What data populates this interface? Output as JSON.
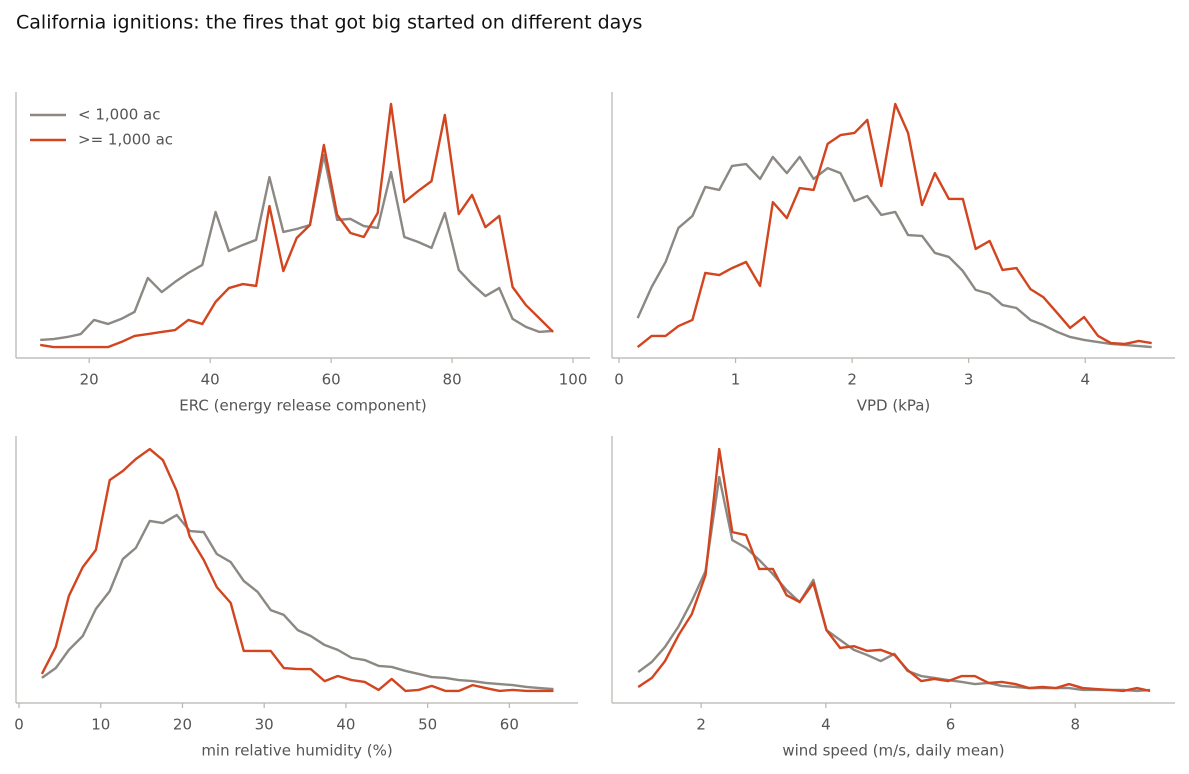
{
  "title": "California ignitions: the fires that got big started on different days",
  "chart_data": [
    {
      "type": "line",
      "xlabel": "ERC (energy release component)",
      "xlim": [
        7.9,
        102.8
      ],
      "xticks": [
        20,
        40,
        60,
        80,
        100
      ],
      "ylim": [
        0,
        100
      ],
      "legend": "upper left",
      "x": [
        11.9,
        14.1,
        16.4,
        18.6,
        20.8,
        23.1,
        25.3,
        27.5,
        29.7,
        32.0,
        34.2,
        36.4,
        38.7,
        40.9,
        43.1,
        45.4,
        47.6,
        49.8,
        52.1,
        54.3,
        56.5,
        58.8,
        61.0,
        63.2,
        65.4,
        67.7,
        69.9,
        72.1,
        74.4,
        76.6,
        78.8,
        81.1,
        83.3,
        85.5,
        87.8,
        90.0,
        92.2,
        94.4,
        96.7
      ],
      "series": [
        {
          "name": "< 1,000 ac",
          "color": "#8c8883",
          "values": [
            6.8,
            7.1,
            7.9,
            9.0,
            14.3,
            12.8,
            14.7,
            17.3,
            30.1,
            24.8,
            28.6,
            32.0,
            35.0,
            54.9,
            40.2,
            42.5,
            44.4,
            68.0,
            47.4,
            48.5,
            50.0,
            76.3,
            51.9,
            52.3,
            49.6,
            48.9,
            69.9,
            45.5,
            43.6,
            41.4,
            54.5,
            33.1,
            27.8,
            23.3,
            26.3,
            14.7,
            11.7,
            9.8,
            10.2
          ]
        },
        {
          "name": ">= 1,000 ac",
          "color": "#d2451f",
          "values": [
            4.9,
            4.1,
            4.1,
            4.1,
            4.1,
            4.1,
            6.0,
            8.3,
            9.0,
            9.8,
            10.5,
            14.3,
            12.8,
            21.1,
            26.3,
            27.8,
            27.1,
            57.1,
            32.7,
            45.1,
            50.0,
            80.1,
            53.8,
            47.0,
            45.5,
            54.5,
            95.5,
            58.6,
            62.8,
            66.5,
            91.4,
            54.1,
            61.3,
            49.2,
            53.4,
            26.7,
            19.9,
            15.0,
            9.8
          ]
        }
      ]
    },
    {
      "type": "line",
      "xlabel": "VPD (kPa)",
      "xlim": [
        -0.06,
        4.77
      ],
      "xticks": [
        0,
        1,
        2,
        3,
        4
      ],
      "ylim": [
        0,
        100
      ],
      "x": [
        0.16,
        0.28,
        0.4,
        0.51,
        0.63,
        0.74,
        0.86,
        0.97,
        1.09,
        1.21,
        1.32,
        1.44,
        1.55,
        1.67,
        1.79,
        1.9,
        2.02,
        2.13,
        2.25,
        2.37,
        2.48,
        2.6,
        2.71,
        2.83,
        2.95,
        3.06,
        3.18,
        3.29,
        3.41,
        3.53,
        3.64,
        3.76,
        3.87,
        3.99,
        4.11,
        4.22,
        4.34,
        4.46,
        4.57
      ],
      "series": [
        {
          "name": "< 1,000 ac",
          "color": "#8c8883",
          "values": [
            15.0,
            26.7,
            36.1,
            48.9,
            53.4,
            64.3,
            63.2,
            72.2,
            72.9,
            67.3,
            75.6,
            69.5,
            75.6,
            67.3,
            71.4,
            69.5,
            59.0,
            60.9,
            53.8,
            54.9,
            46.2,
            45.9,
            39.5,
            38.0,
            32.7,
            25.6,
            24.1,
            19.9,
            18.8,
            14.3,
            12.4,
            9.8,
            7.9,
            6.8,
            6.0,
            5.3,
            4.9,
            4.5,
            4.1
          ]
        },
        {
          "name": ">= 1,000 ac",
          "color": "#d2451f",
          "values": [
            4.1,
            8.3,
            8.3,
            12.0,
            14.3,
            32.0,
            31.2,
            33.8,
            36.1,
            27.1,
            58.6,
            52.6,
            63.9,
            63.2,
            80.5,
            83.8,
            84.6,
            89.5,
            64.7,
            95.5,
            84.6,
            57.5,
            69.5,
            59.8,
            59.8,
            41.0,
            44.0,
            33.1,
            33.8,
            25.9,
            22.9,
            16.9,
            11.3,
            15.4,
            8.3,
            5.6,
            5.3,
            6.4,
            5.6
          ]
        }
      ]
    },
    {
      "type": "line",
      "xlabel": "min relative humidity (%)",
      "xlim": [
        -0.37,
        68.4
      ],
      "xticks": [
        0,
        10,
        20,
        30,
        40,
        50,
        60
      ],
      "ylim": [
        0,
        100
      ],
      "x": [
        2.8,
        4.5,
        6.1,
        7.8,
        9.4,
        11.1,
        12.7,
        14.3,
        16.0,
        17.6,
        19.3,
        20.9,
        22.6,
        24.2,
        25.9,
        27.5,
        29.2,
        30.8,
        32.4,
        34.1,
        35.7,
        37.4,
        39.0,
        40.7,
        42.3,
        44.0,
        45.6,
        47.3,
        48.9,
        50.5,
        52.2,
        53.8,
        55.5,
        57.1,
        58.8,
        60.4,
        62.1,
        63.7,
        65.4
      ],
      "series": [
        {
          "name": "< 1,000 ac",
          "color": "#8c8883",
          "values": [
            9.4,
            13.1,
            19.9,
            25.1,
            35.2,
            41.9,
            53.9,
            58.1,
            68.2,
            67.4,
            70.4,
            64.4,
            64.0,
            55.8,
            52.8,
            45.7,
            41.6,
            34.8,
            33.0,
            27.3,
            25.1,
            21.7,
            19.9,
            16.9,
            16.1,
            13.9,
            13.5,
            12.0,
            10.9,
            9.7,
            9.4,
            8.6,
            8.2,
            7.5,
            7.1,
            6.7,
            6.0,
            5.6,
            5.2
          ]
        },
        {
          "name": ">= 1,000 ac",
          "color": "#d2451f",
          "values": [
            10.9,
            21.0,
            40.1,
            50.9,
            57.3,
            83.5,
            86.9,
            91.4,
            95.1,
            91.0,
            79.4,
            62.2,
            53.6,
            43.4,
            37.5,
            19.5,
            19.5,
            19.5,
            13.1,
            12.7,
            12.7,
            8.2,
            10.1,
            8.6,
            7.9,
            4.9,
            9.0,
            4.5,
            4.9,
            6.4,
            4.5,
            4.5,
            6.7,
            5.6,
            4.5,
            4.9,
            4.5,
            4.5,
            4.5
          ]
        }
      ]
    },
    {
      "type": "line",
      "xlabel": "wind speed (m/s, daily mean)",
      "xlim": [
        0.57,
        9.6
      ],
      "xticks": [
        2,
        4,
        6,
        8
      ],
      "ylim": [
        0,
        100
      ],
      "x": [
        0.99,
        1.21,
        1.42,
        1.64,
        1.85,
        2.07,
        2.29,
        2.5,
        2.72,
        2.93,
        3.15,
        3.37,
        3.58,
        3.8,
        4.01,
        4.23,
        4.45,
        4.66,
        4.88,
        5.1,
        5.31,
        5.53,
        5.74,
        5.96,
        6.18,
        6.39,
        6.61,
        6.82,
        7.04,
        7.26,
        7.47,
        7.69,
        7.9,
        8.12,
        8.34,
        8.55,
        8.77,
        8.99,
        9.2
      ],
      "series": [
        {
          "name": "< 1,000 ac",
          "color": "#8c8883",
          "values": [
            11.6,
            15.4,
            21.0,
            28.8,
            38.2,
            49.4,
            84.6,
            61.0,
            58.1,
            53.6,
            48.3,
            42.3,
            37.8,
            46.1,
            27.3,
            23.6,
            19.9,
            18.0,
            15.7,
            18.4,
            12.0,
            10.1,
            9.4,
            8.6,
            7.9,
            7.1,
            7.5,
            6.4,
            6.0,
            5.6,
            5.6,
            5.6,
            5.6,
            4.9,
            4.9,
            4.9,
            4.9,
            4.5,
            4.9
          ]
        },
        {
          "name": ">= 1,000 ac",
          "color": "#d2451f",
          "values": [
            6.0,
            9.4,
            15.7,
            25.5,
            33.3,
            47.9,
            95.1,
            64.0,
            62.9,
            50.2,
            50.2,
            40.4,
            37.8,
            44.9,
            27.3,
            20.6,
            21.3,
            19.5,
            19.9,
            18.0,
            12.4,
            8.2,
            9.0,
            8.2,
            10.1,
            10.1,
            7.5,
            7.9,
            7.1,
            5.6,
            6.0,
            5.6,
            7.1,
            5.6,
            5.2,
            4.9,
            4.5,
            5.6,
            4.5
          ]
        }
      ]
    }
  ]
}
